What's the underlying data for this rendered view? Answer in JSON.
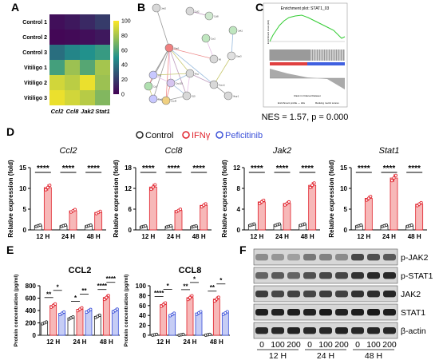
{
  "panel_labels": [
    "A",
    "B",
    "C",
    "D",
    "E",
    "F"
  ],
  "colors": {
    "control": "#222222",
    "ifng": "#e0202a",
    "peficitinib": "#3a4fd8",
    "ifng_bar": "#f7b8b8",
    "pef_bar": "#c6cdf5",
    "heat_low": "#440154",
    "heat_mid": "#21918c",
    "heat_high": "#fde725",
    "gsea_curve": "#33cc33"
  },
  "heatmap": {
    "rows": [
      "Control 1",
      "Control 2",
      "Control 3",
      "Vitiligo 1",
      "Vitiligo 2",
      "Vitiligo 3"
    ],
    "cols": [
      "Ccl2",
      "Ccl8",
      "Jak2",
      "Stat1"
    ],
    "values": [
      [
        5,
        8,
        14,
        20
      ],
      [
        2,
        3,
        5,
        8
      ],
      [
        38,
        46,
        50,
        55
      ],
      [
        58,
        78,
        62,
        80
      ],
      [
        90,
        85,
        96,
        78
      ],
      [
        96,
        90,
        84,
        72
      ]
    ],
    "scale_ticks": [
      "100",
      "80",
      "60",
      "40",
      "20",
      "0"
    ]
  },
  "network": {
    "nodes": [
      "Ccl2",
      "Jak2",
      "Ccl8",
      "Stat1",
      "Ccr2",
      "Il6",
      "Stat3",
      "Jak1",
      "Irf1",
      "Cxcl10",
      "Ifng",
      "Socs1",
      "Ifngr1",
      "Cxcl9",
      "Tlr4",
      "Il10",
      "Ccl7"
    ]
  },
  "gsea": {
    "title": "Enrichment plot: STAT1_03",
    "ylabel": "Enrichment score (ES)",
    "xlabel": "Rank in Ordered Dataset",
    "legend": [
      "Enrichment profile — Hits",
      "Ranking metric scores"
    ],
    "caption": "NES = 1.57, p = 0.000"
  },
  "legend": {
    "items": [
      "Control",
      "IFNγ",
      "Peficitinib"
    ]
  },
  "chart_data": [
    {
      "type": "bar",
      "title": "Ccl2",
      "ylabel": "Relative expression (fold)",
      "categories": [
        "12 H",
        "24 H",
        "48 H"
      ],
      "yticks": [
        "0",
        "5",
        "10",
        "15"
      ],
      "ylim": [
        0,
        15
      ],
      "series": [
        {
          "name": "Control",
          "values": [
            1.0,
            1.0,
            1.0
          ]
        },
        {
          "name": "IFNγ",
          "values": [
            10.2,
            4.6,
            4.2
          ]
        }
      ],
      "significance": [
        "****",
        "****",
        "****"
      ]
    },
    {
      "type": "bar",
      "title": "Ccl8",
      "ylabel": "Relative expression (fold)",
      "categories": [
        "12 H",
        "24 H",
        "48 H"
      ],
      "yticks": [
        "0",
        "6",
        "12",
        "18"
      ],
      "ylim": [
        0,
        18
      ],
      "series": [
        {
          "name": "Control",
          "values": [
            1.0,
            1.0,
            1.0
          ]
        },
        {
          "name": "IFNγ",
          "values": [
            12.4,
            5.6,
            7.1
          ]
        }
      ],
      "significance": [
        "****",
        "****",
        "****"
      ]
    },
    {
      "type": "bar",
      "title": "Jak2",
      "ylabel": "Relative expression (fold)",
      "categories": [
        "12 H",
        "24 H",
        "48 H"
      ],
      "yticks": [
        "0",
        "4",
        "8",
        "12"
      ],
      "ylim": [
        0,
        12
      ],
      "series": [
        {
          "name": "Control",
          "values": [
            1.0,
            1.0,
            1.0
          ]
        },
        {
          "name": "IFNγ",
          "values": [
            5.4,
            5.1,
            8.6
          ]
        }
      ],
      "significance": [
        "****",
        "****",
        "****"
      ]
    },
    {
      "type": "bar",
      "title": "Stat1",
      "ylabel": "Relative expression (fold)",
      "categories": [
        "12 H",
        "24 H",
        "48 H"
      ],
      "yticks": [
        "0",
        "5",
        "10",
        "15"
      ],
      "ylim": [
        0,
        15
      ],
      "series": [
        {
          "name": "Control",
          "values": [
            1.0,
            1.0,
            1.0
          ]
        },
        {
          "name": "IFNγ",
          "values": [
            7.6,
            12.5,
            6.2
          ]
        }
      ],
      "significance": [
        "****",
        "****",
        "****"
      ]
    },
    {
      "type": "bar",
      "title": "CCL2",
      "ylabel": "Protein concentration (pg/ml)",
      "categories": [
        "12 H",
        "24 H",
        "48 H"
      ],
      "yticks": [
        "0",
        "200",
        "400",
        "600",
        "800"
      ],
      "ylim": [
        0,
        800
      ],
      "series": [
        {
          "name": "Control",
          "values": [
            200,
            280,
            305
          ]
        },
        {
          "name": "IFNγ",
          "values": [
            480,
            420,
            610
          ]
        },
        {
          "name": "Peficitinib",
          "values": [
            355,
            395,
            400
          ]
        }
      ],
      "significance_pairs": [
        {
          "group": 0,
          "from": 0,
          "to": 1,
          "level": 0,
          "label": "**"
        },
        {
          "group": 0,
          "from": 1,
          "to": 2,
          "level": 1,
          "label": "*"
        },
        {
          "group": 1,
          "from": 0,
          "to": 1,
          "level": 0,
          "label": "*"
        },
        {
          "group": 1,
          "from": 1,
          "to": 2,
          "level": 1,
          "label": "**"
        },
        {
          "group": 2,
          "from": 0,
          "to": 1,
          "level": 0,
          "label": "****"
        },
        {
          "group": 2,
          "from": 1,
          "to": 2,
          "level": 1,
          "label": "****"
        }
      ]
    },
    {
      "type": "bar",
      "title": "CCL8",
      "ylabel": "Protein concentration (pg/ml)",
      "categories": [
        "12 H",
        "24 H",
        "48 H"
      ],
      "yticks": [
        "0",
        "20",
        "40",
        "60",
        "80",
        "100"
      ],
      "ylim": [
        0,
        100
      ],
      "series": [
        {
          "name": "Control",
          "values": [
            1,
            1,
            1
          ]
        },
        {
          "name": "IFNγ",
          "values": [
            62,
            76,
            73
          ]
        },
        {
          "name": "Peficitinib",
          "values": [
            42,
            45,
            45
          ]
        }
      ],
      "significance_pairs": [
        {
          "group": 0,
          "from": 0,
          "to": 1,
          "level": 0,
          "label": "****"
        },
        {
          "group": 0,
          "from": 1,
          "to": 2,
          "level": 1,
          "label": "*"
        },
        {
          "group": 1,
          "from": 0,
          "to": 1,
          "level": 0,
          "label": "**"
        },
        {
          "group": 1,
          "from": 1,
          "to": 2,
          "level": 1,
          "label": "*"
        },
        {
          "group": 2,
          "from": 0,
          "to": 1,
          "level": 0,
          "label": "**"
        },
        {
          "group": 2,
          "from": 1,
          "to": 2,
          "level": 1,
          "label": "*"
        }
      ]
    }
  ],
  "western": {
    "bands": [
      "p-JAK2",
      "p-STAT1",
      "JAK2",
      "STAT1",
      "β-actin"
    ],
    "doses": [
      "0",
      "100",
      "200",
      "0",
      "100",
      "200",
      "0",
      "100",
      "200"
    ],
    "timepoints": [
      "12 H",
      "24 H",
      "48 H"
    ],
    "intensity": [
      [
        0.35,
        0.3,
        0.25,
        0.45,
        0.4,
        0.35,
        0.7,
        0.65,
        0.6
      ],
      [
        0.55,
        0.6,
        0.55,
        0.65,
        0.7,
        0.7,
        0.8,
        0.85,
        0.85
      ],
      [
        0.75,
        0.7,
        0.72,
        0.7,
        0.75,
        0.72,
        0.8,
        0.82,
        0.85
      ],
      [
        0.9,
        0.88,
        0.9,
        0.88,
        0.92,
        0.88,
        0.9,
        0.92,
        0.9
      ],
      [
        0.85,
        0.85,
        0.88,
        0.85,
        0.85,
        0.88,
        0.85,
        0.86,
        0.85
      ]
    ]
  }
}
